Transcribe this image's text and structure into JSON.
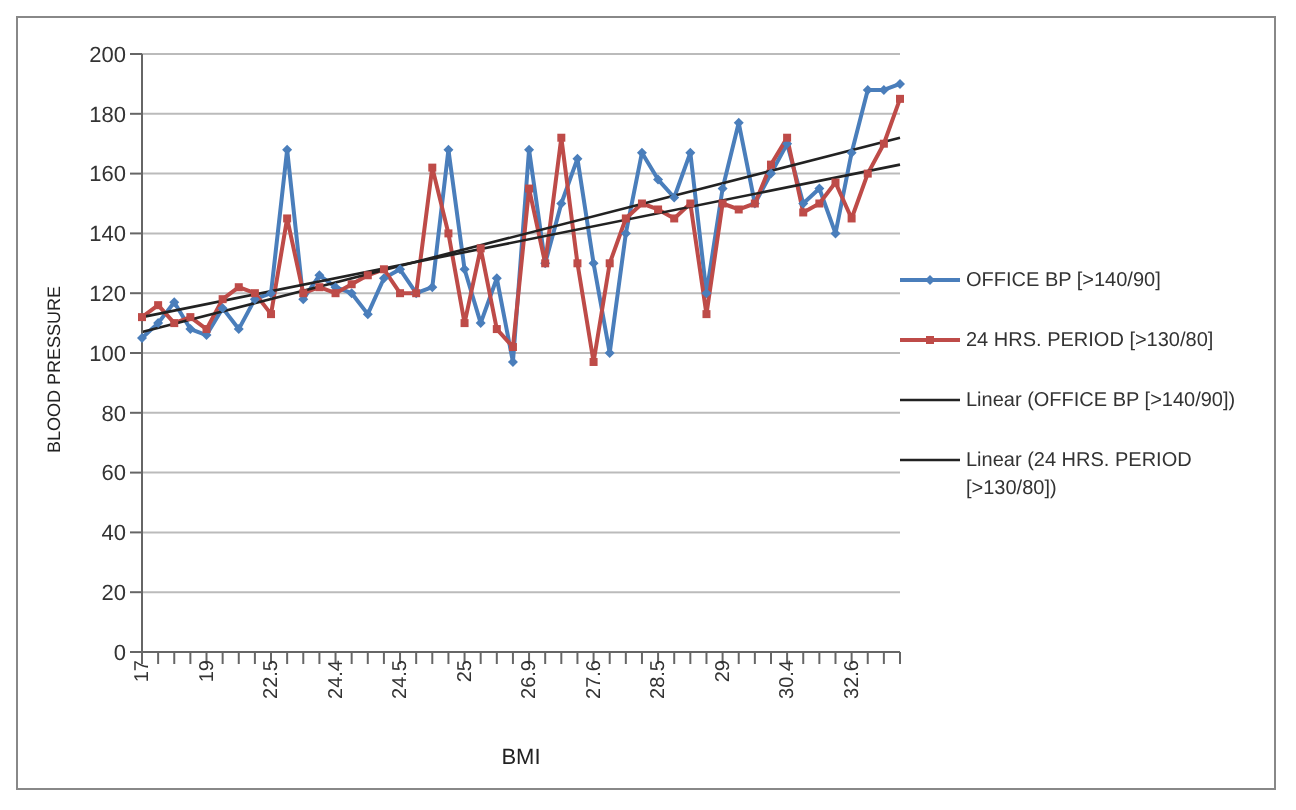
{
  "chart_data": {
    "type": "line",
    "xlabel": "BMI",
    "ylabel": "BLOOD PRESSURE",
    "categories": [
      "17",
      null,
      null,
      null,
      "19",
      null,
      null,
      null,
      "22.5",
      null,
      null,
      null,
      "24.4",
      null,
      null,
      null,
      "24.5",
      null,
      null,
      null,
      "25",
      null,
      null,
      null,
      "26.9",
      null,
      null,
      null,
      "27.6",
      null,
      null,
      null,
      "28.5",
      null,
      null,
      null,
      "29",
      null,
      null,
      null,
      "30.4",
      null,
      null,
      null,
      "32.6",
      null,
      null,
      null
    ],
    "series": [
      {
        "name": "OFFICE BP [>140/90]",
        "color": "#4a7ebb",
        "marker": "diamond",
        "values": [
          105,
          110,
          117,
          108,
          106,
          115,
          108,
          118,
          120,
          168,
          118,
          126,
          122,
          120,
          113,
          125,
          128,
          120,
          122,
          168,
          128,
          110,
          125,
          97,
          168,
          130,
          150,
          165,
          130,
          100,
          140,
          167,
          158,
          152,
          167,
          120,
          155,
          177,
          150,
          160,
          170,
          150,
          155,
          140,
          167,
          188,
          188,
          190
        ]
      },
      {
        "name": "24 HRS. PERIOD [>130/80]",
        "color": "#be4b48",
        "marker": "square",
        "values": [
          112,
          116,
          110,
          112,
          108,
          118,
          122,
          120,
          113,
          145,
          120,
          122,
          120,
          123,
          126,
          128,
          120,
          120,
          162,
          140,
          110,
          135,
          108,
          102,
          155,
          130,
          172,
          130,
          97,
          130,
          145,
          150,
          148,
          145,
          150,
          113,
          150,
          148,
          150,
          163,
          172,
          147,
          150,
          157,
          145,
          160,
          170,
          185
        ]
      },
      {
        "name": "Linear (OFFICE BP [>140/90])",
        "color": "#222222",
        "marker": "none",
        "values": [
          107,
          null,
          null,
          null,
          null,
          null,
          null,
          null,
          null,
          null,
          null,
          null,
          null,
          null,
          null,
          null,
          null,
          null,
          null,
          null,
          null,
          null,
          null,
          null,
          null,
          null,
          null,
          null,
          null,
          null,
          null,
          null,
          null,
          null,
          null,
          null,
          null,
          null,
          null,
          null,
          null,
          null,
          null,
          null,
          null,
          null,
          null,
          172
        ]
      },
      {
        "name": "Linear (24 HRS. PERIOD [>130/80])",
        "color": "#222222",
        "marker": "none",
        "values": [
          112,
          null,
          null,
          null,
          null,
          null,
          null,
          null,
          null,
          null,
          null,
          null,
          null,
          null,
          null,
          null,
          null,
          null,
          null,
          null,
          null,
          null,
          null,
          null,
          null,
          null,
          null,
          null,
          null,
          null,
          null,
          null,
          null,
          null,
          null,
          null,
          null,
          null,
          null,
          null,
          null,
          null,
          null,
          null,
          null,
          null,
          null,
          163
        ]
      }
    ],
    "ylim": [
      0,
      200
    ],
    "yticks": [
      0,
      20,
      40,
      60,
      80,
      100,
      120,
      140,
      160,
      180,
      200
    ],
    "grid": "y",
    "legend": "right"
  }
}
